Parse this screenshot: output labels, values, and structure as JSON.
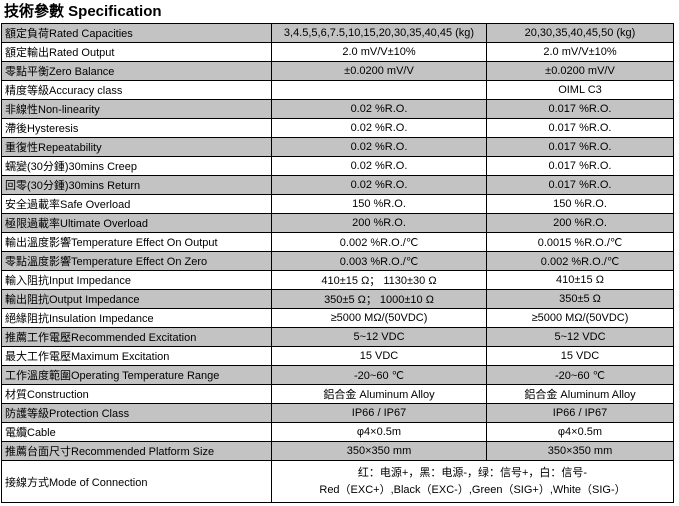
{
  "title": "技術參數 Specification",
  "colors": {
    "row_shade": "#c3c3c3",
    "border": "#000000"
  },
  "table": {
    "rows": [
      {
        "label": "額定負荷Rated Capacities",
        "v1": "3,4.5,5,6,7.5,10,15,20,30,35,40,45 (kg)",
        "v2": "20,30,35,40,45,50 (kg)"
      },
      {
        "label": "額定輸出Rated Output",
        "v1": "2.0 mV/V±10%",
        "v2": "2.0 mV/V±10%"
      },
      {
        "label": "零點平衡Zero Balance",
        "v1": "±0.0200 mV/V",
        "v2": "±0.0200 mV/V"
      },
      {
        "label": "精度等級Accuracy class",
        "v1": "",
        "v2": "OIML C3"
      },
      {
        "label": "非線性Non-linearity",
        "v1": "0.02 %R.O.",
        "v2": "0.017 %R.O."
      },
      {
        "label": "滯後Hysteresis",
        "v1": "0.02 %R.O.",
        "v2": "0.017 %R.O."
      },
      {
        "label": "重復性Repeatability",
        "v1": "0.02 %R.O.",
        "v2": "0.017 %R.O."
      },
      {
        "label": "蠕變(30分鍾)30mins Creep",
        "v1": "0.02 %R.O.",
        "v2": "0.017 %R.O."
      },
      {
        "label": "回零(30分鍾)30mins Return",
        "v1": "0.02 %R.O.",
        "v2": "0.017 %R.O."
      },
      {
        "label": "安全過載率Safe Overload",
        "v1": "150 %R.O.",
        "v2": "150 %R.O."
      },
      {
        "label": "極限過載率Ultimate Overload",
        "v1": "200 %R.O.",
        "v2": "200 %R.O."
      },
      {
        "label": "輸出溫度影響Temperature Effect On Output",
        "v1": "0.002 %R.O./℃",
        "v2": "0.0015 %R.O./℃"
      },
      {
        "label": "零點溫度影響Temperature Effect On Zero",
        "v1": "0.003 %R.O./℃",
        "v2": "0.002 %R.O./℃"
      },
      {
        "label": "輸入阻抗Input Impedance",
        "v1": "410±15 Ω；  1130±30 Ω",
        "v2": "410±15 Ω"
      },
      {
        "label": "輸出阻抗Output Impedance",
        "v1": "350±5 Ω；  1000±10 Ω",
        "v2": "350±5 Ω"
      },
      {
        "label": "絕緣阻抗Insulation Impedance",
        "v1": "≥5000 MΩ/(50VDC)",
        "v2": "≥5000 MΩ/(50VDC)"
      },
      {
        "label": "推薦工作電壓Recommended Excitation",
        "v1": "5~12 VDC",
        "v2": "5~12 VDC"
      },
      {
        "label": "最大工作電壓Maximum Excitation",
        "v1": "15 VDC",
        "v2": "15 VDC"
      },
      {
        "label": "工作溫度範圍Operating Temperature Range",
        "v1": "-20~60 ℃",
        "v2": "-20~60 ℃"
      },
      {
        "label": "材質Construction",
        "v1": "鋁合金 Aluminum Alloy",
        "v2": "鋁合金 Aluminum Alloy"
      },
      {
        "label": "防護等級Protection Class",
        "v1": "IP66 / IP67",
        "v2": "IP66 / IP67"
      },
      {
        "label": "電纜Cable",
        "v1": "φ4×0.5m",
        "v2": "φ4×0.5m"
      },
      {
        "label": "推薦台面尺寸Recommended Platform Size",
        "v1": "350×350 mm",
        "v2": "350×350 mm"
      }
    ],
    "connection_row": {
      "label": "接線方式Mode of Connection",
      "line1": "红：电源+，黑：电源-，绿：信号+，白：信号-",
      "line2": "Red（EXC+）,Black（EXC-）,Green（SIG+）,White（SIG-）"
    }
  }
}
